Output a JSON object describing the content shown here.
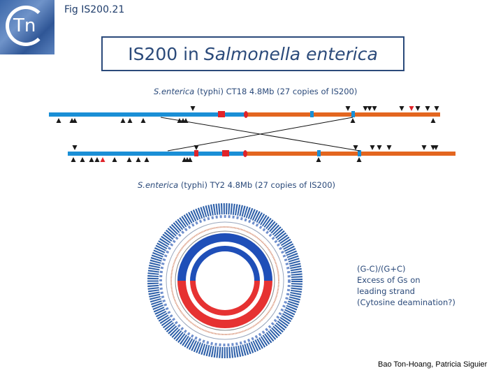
{
  "fig_label": "Fig IS200.21",
  "logo_text": "Tn",
  "title": {
    "plain": "IS200 in",
    "italic": "Salmonella enterica"
  },
  "genomes": [
    {
      "species_italic": "S.enterica",
      "rest": " (typhi) CT18 4.8Mb (27 copies of IS200)"
    },
    {
      "species_italic": "S.enterica",
      "rest": " (typhi) TY2 4.8Mb (27 copies of IS200)"
    }
  ],
  "note_lines": [
    "(G-C)/(G+C)",
    "Excess of Gs on",
    "leading strand",
    "(Cytosine deamination?)"
  ],
  "credit": "Bao Ton-Hoang, Patricia Siguier",
  "colors": {
    "title": "#2b4a7a",
    "segment_blue": "#1a8fd6",
    "segment_orange": "#e3661f",
    "marker_red": "#e0242a",
    "is_marker": "#1a1a1a",
    "circle_blue": "#1f4fb8",
    "circle_red": "#e63232"
  }
}
